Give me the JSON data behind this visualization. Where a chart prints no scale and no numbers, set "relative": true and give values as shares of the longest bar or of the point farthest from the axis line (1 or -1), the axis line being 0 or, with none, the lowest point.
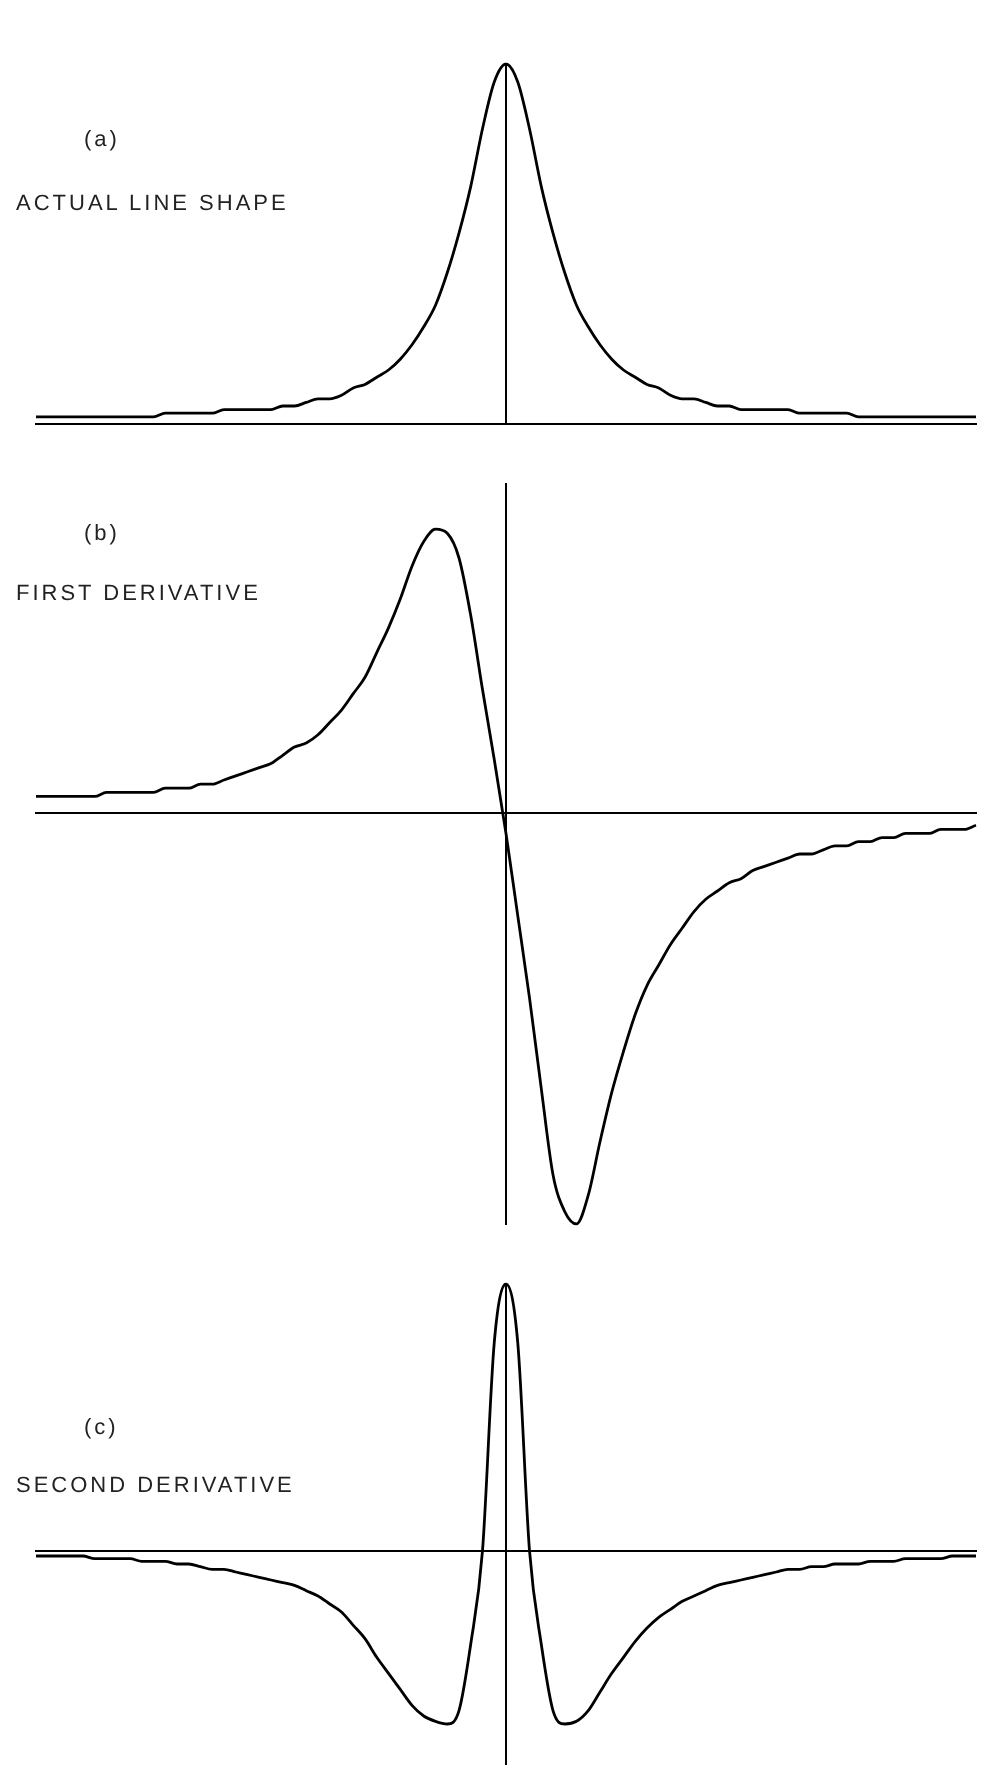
{
  "chart_data": [
    {
      "type": "line",
      "title": "(a)",
      "subtitle": "ACTUAL LINE SHAPE",
      "relative": true,
      "grid": false,
      "legend": false,
      "categories": [
        null,
        null,
        null,
        null,
        null,
        null,
        null,
        null,
        null,
        null,
        null,
        null,
        null,
        null,
        null,
        null,
        null,
        null,
        null,
        null,
        null,
        null,
        null,
        null,
        null,
        null,
        null,
        null,
        null,
        null,
        null,
        null,
        null,
        null,
        null,
        null,
        null,
        null,
        null,
        null,
        null,
        null,
        null,
        null,
        null,
        null,
        null,
        null,
        null,
        null,
        null,
        null,
        null,
        null,
        null,
        null,
        null,
        null,
        null,
        null,
        null,
        null,
        null,
        null,
        null,
        null,
        null,
        null,
        null,
        null,
        null,
        null,
        null,
        null,
        null,
        null,
        null,
        null,
        null,
        null,
        null
      ],
      "series": [
        {
          "color": "#000000",
          "values": [
            0.02,
            0.02,
            0.02,
            0.02,
            0.02,
            0.02,
            0.02,
            0.02,
            0.02,
            0.02,
            0.02,
            0.03,
            0.03,
            0.03,
            0.03,
            0.03,
            0.04,
            0.04,
            0.04,
            0.04,
            0.04,
            0.05,
            0.05,
            0.06,
            0.07,
            0.07,
            0.08,
            0.1,
            0.11,
            0.13,
            0.15,
            0.18,
            0.22,
            0.27,
            0.33,
            0.42,
            0.53,
            0.66,
            0.82,
            0.95,
            1,
            0.95,
            0.82,
            0.66,
            0.53,
            0.42,
            0.33,
            0.27,
            0.22,
            0.18,
            0.15,
            0.13,
            0.11,
            0.1,
            0.08,
            0.07,
            0.07,
            0.06,
            0.05,
            0.05,
            0.04,
            0.04,
            0.04,
            0.04,
            0.04,
            0.03,
            0.03,
            0.03,
            0.03,
            0.03,
            0.02,
            0.02,
            0.02,
            0.02,
            0.02,
            0.02,
            0.02,
            0.02,
            0.02,
            0.02,
            0.02
          ]
        }
      ]
    },
    {
      "type": "line",
      "title": "(b)",
      "subtitle": "FIRST DERIVATIVE",
      "relative": true,
      "grid": false,
      "legend": false,
      "categories": [
        null,
        null,
        null,
        null,
        null,
        null,
        null,
        null,
        null,
        null,
        null,
        null,
        null,
        null,
        null,
        null,
        null,
        null,
        null,
        null,
        null,
        null,
        null,
        null,
        null,
        null,
        null,
        null,
        null,
        null,
        null,
        null,
        null,
        null,
        null,
        null,
        null,
        null,
        null,
        null,
        null,
        null,
        null,
        null,
        null,
        null,
        null,
        null,
        null,
        null,
        null,
        null,
        null,
        null,
        null,
        null,
        null,
        null,
        null,
        null,
        null,
        null,
        null,
        null,
        null,
        null,
        null,
        null,
        null,
        null,
        null,
        null,
        null,
        null,
        null,
        null,
        null,
        null,
        null,
        null,
        null
      ],
      "series": [
        {
          "color": "#000000",
          "values": [
            0.04,
            0.04,
            0.04,
            0.04,
            0.04,
            0.04,
            0.05,
            0.05,
            0.05,
            0.05,
            0.05,
            0.06,
            0.06,
            0.06,
            0.07,
            0.07,
            0.08,
            0.09,
            0.1,
            0.11,
            0.12,
            0.14,
            0.16,
            0.17,
            0.19,
            0.22,
            0.25,
            0.29,
            0.33,
            0.39,
            0.45,
            0.52,
            0.6,
            0.66,
            0.69,
            0.68,
            0.62,
            0.48,
            0.3,
            0.13,
            -0.05,
            -0.25,
            -0.45,
            -0.67,
            -0.88,
            -0.97,
            -1,
            -0.93,
            -0.8,
            -0.68,
            -0.58,
            -0.49,
            -0.42,
            -0.37,
            -0.32,
            -0.28,
            -0.24,
            -0.21,
            -0.19,
            -0.17,
            -0.16,
            -0.14,
            -0.13,
            -0.12,
            -0.11,
            -0.1,
            -0.1,
            -0.09,
            -0.08,
            -0.08,
            -0.07,
            -0.07,
            -0.06,
            -0.06,
            -0.05,
            -0.05,
            -0.05,
            -0.04,
            -0.04,
            -0.04,
            -0.03
          ]
        }
      ]
    },
    {
      "type": "line",
      "title": "(c)",
      "subtitle": "SECOND DERIVATIVE",
      "relative": true,
      "grid": false,
      "legend": false,
      "categories": [
        null,
        null,
        null,
        null,
        null,
        null,
        null,
        null,
        null,
        null,
        null,
        null,
        null,
        null,
        null,
        null,
        null,
        null,
        null,
        null,
        null,
        null,
        null,
        null,
        null,
        null,
        null,
        null,
        null,
        null,
        null,
        null,
        null,
        null,
        null,
        null,
        null,
        null,
        null,
        null,
        null,
        null,
        null,
        null,
        null,
        null,
        null,
        null,
        null,
        null,
        null,
        null,
        null,
        null,
        null,
        null,
        null,
        null,
        null,
        null,
        null,
        null,
        null,
        null,
        null,
        null,
        null,
        null,
        null,
        null,
        null,
        null,
        null,
        null,
        null,
        null,
        null,
        null,
        null,
        null,
        null
      ],
      "series": [
        {
          "color": "#000000",
          "values": [
            -0.02,
            -0.02,
            -0.02,
            -0.02,
            -0.02,
            -0.03,
            -0.03,
            -0.03,
            -0.03,
            -0.04,
            -0.04,
            -0.04,
            -0.05,
            -0.05,
            -0.06,
            -0.07,
            -0.07,
            -0.08,
            -0.09,
            -0.1,
            -0.11,
            -0.12,
            -0.13,
            -0.15,
            -0.17,
            -0.2,
            -0.23,
            -0.28,
            -0.33,
            -0.4,
            -0.46,
            -0.52,
            -0.58,
            -0.62,
            -0.64,
            -0.65,
            -0.6,
            -0.35,
            0,
            0.78,
            1,
            0.78,
            0,
            -0.35,
            -0.6,
            -0.65,
            -0.64,
            -0.6,
            -0.53,
            -0.46,
            -0.4,
            -0.34,
            -0.29,
            -0.25,
            -0.22,
            -0.19,
            -0.17,
            -0.15,
            -0.13,
            -0.12,
            -0.11,
            -0.1,
            -0.09,
            -0.08,
            -0.07,
            -0.07,
            -0.06,
            -0.06,
            -0.05,
            -0.05,
            -0.05,
            -0.04,
            -0.04,
            -0.04,
            -0.03,
            -0.03,
            -0.03,
            -0.03,
            -0.02,
            -0.02,
            -0.02
          ]
        }
      ]
    }
  ]
}
